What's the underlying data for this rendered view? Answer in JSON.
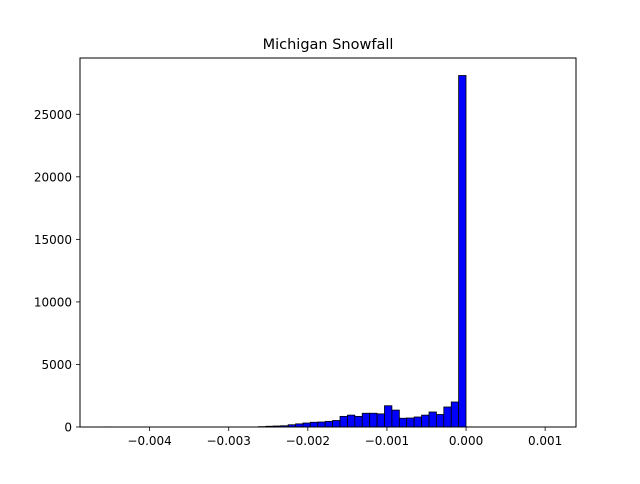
{
  "chart_data": {
    "type": "bar",
    "title": "Michigan Snowfall",
    "xlabel": "",
    "ylabel": "",
    "xlim": [
      -0.00488,
      0.00139
    ],
    "ylim": [
      0,
      29500
    ],
    "grid": false,
    "bin_width": 9.37e-05,
    "xticks": [
      -0.004,
      -0.003,
      -0.002,
      -0.001,
      0.0,
      0.001
    ],
    "xtick_labels": [
      "−0.004",
      "−0.003",
      "−0.002",
      "−0.001",
      "0.000",
      "0.001"
    ],
    "yticks": [
      0,
      5000,
      10000,
      15000,
      20000,
      25000
    ],
    "ytick_labels": [
      "0",
      "5000",
      "10000",
      "15000",
      "20000",
      "25000"
    ],
    "bins": [
      {
        "x0": -0.004592,
        "value": 10
      },
      {
        "x0": -0.002624,
        "value": 30
      },
      {
        "x0": -0.00253,
        "value": 60
      },
      {
        "x0": -0.002437,
        "value": 80
      },
      {
        "x0": -0.002343,
        "value": 100
      },
      {
        "x0": -0.002249,
        "value": 180
      },
      {
        "x0": -0.002155,
        "value": 250
      },
      {
        "x0": -0.002062,
        "value": 320
      },
      {
        "x0": -0.001968,
        "value": 380
      },
      {
        "x0": -0.001874,
        "value": 400
      },
      {
        "x0": -0.00178,
        "value": 450
      },
      {
        "x0": -0.001687,
        "value": 520
      },
      {
        "x0": -0.001593,
        "value": 850
      },
      {
        "x0": -0.001499,
        "value": 950
      },
      {
        "x0": -0.001406,
        "value": 850
      },
      {
        "x0": -0.001312,
        "value": 1100
      },
      {
        "x0": -0.001218,
        "value": 1100
      },
      {
        "x0": -0.001124,
        "value": 1050
      },
      {
        "x0": -0.001031,
        "value": 1700
      },
      {
        "x0": -0.000937,
        "value": 1350
      },
      {
        "x0": -0.000843,
        "value": 700
      },
      {
        "x0": -0.00075,
        "value": 720
      },
      {
        "x0": -0.000656,
        "value": 800
      },
      {
        "x0": -0.000562,
        "value": 950
      },
      {
        "x0": -0.000468,
        "value": 1200
      },
      {
        "x0": -0.000375,
        "value": 1000
      },
      {
        "x0": -0.000281,
        "value": 1600
      },
      {
        "x0": -0.000187,
        "value": 2000
      },
      {
        "x0": -9.4e-05,
        "value": 28100
      },
      {
        "x0": 0.0,
        "value": 10
      }
    ],
    "bar_color": "#0000ff",
    "edge_color": "#000000"
  }
}
